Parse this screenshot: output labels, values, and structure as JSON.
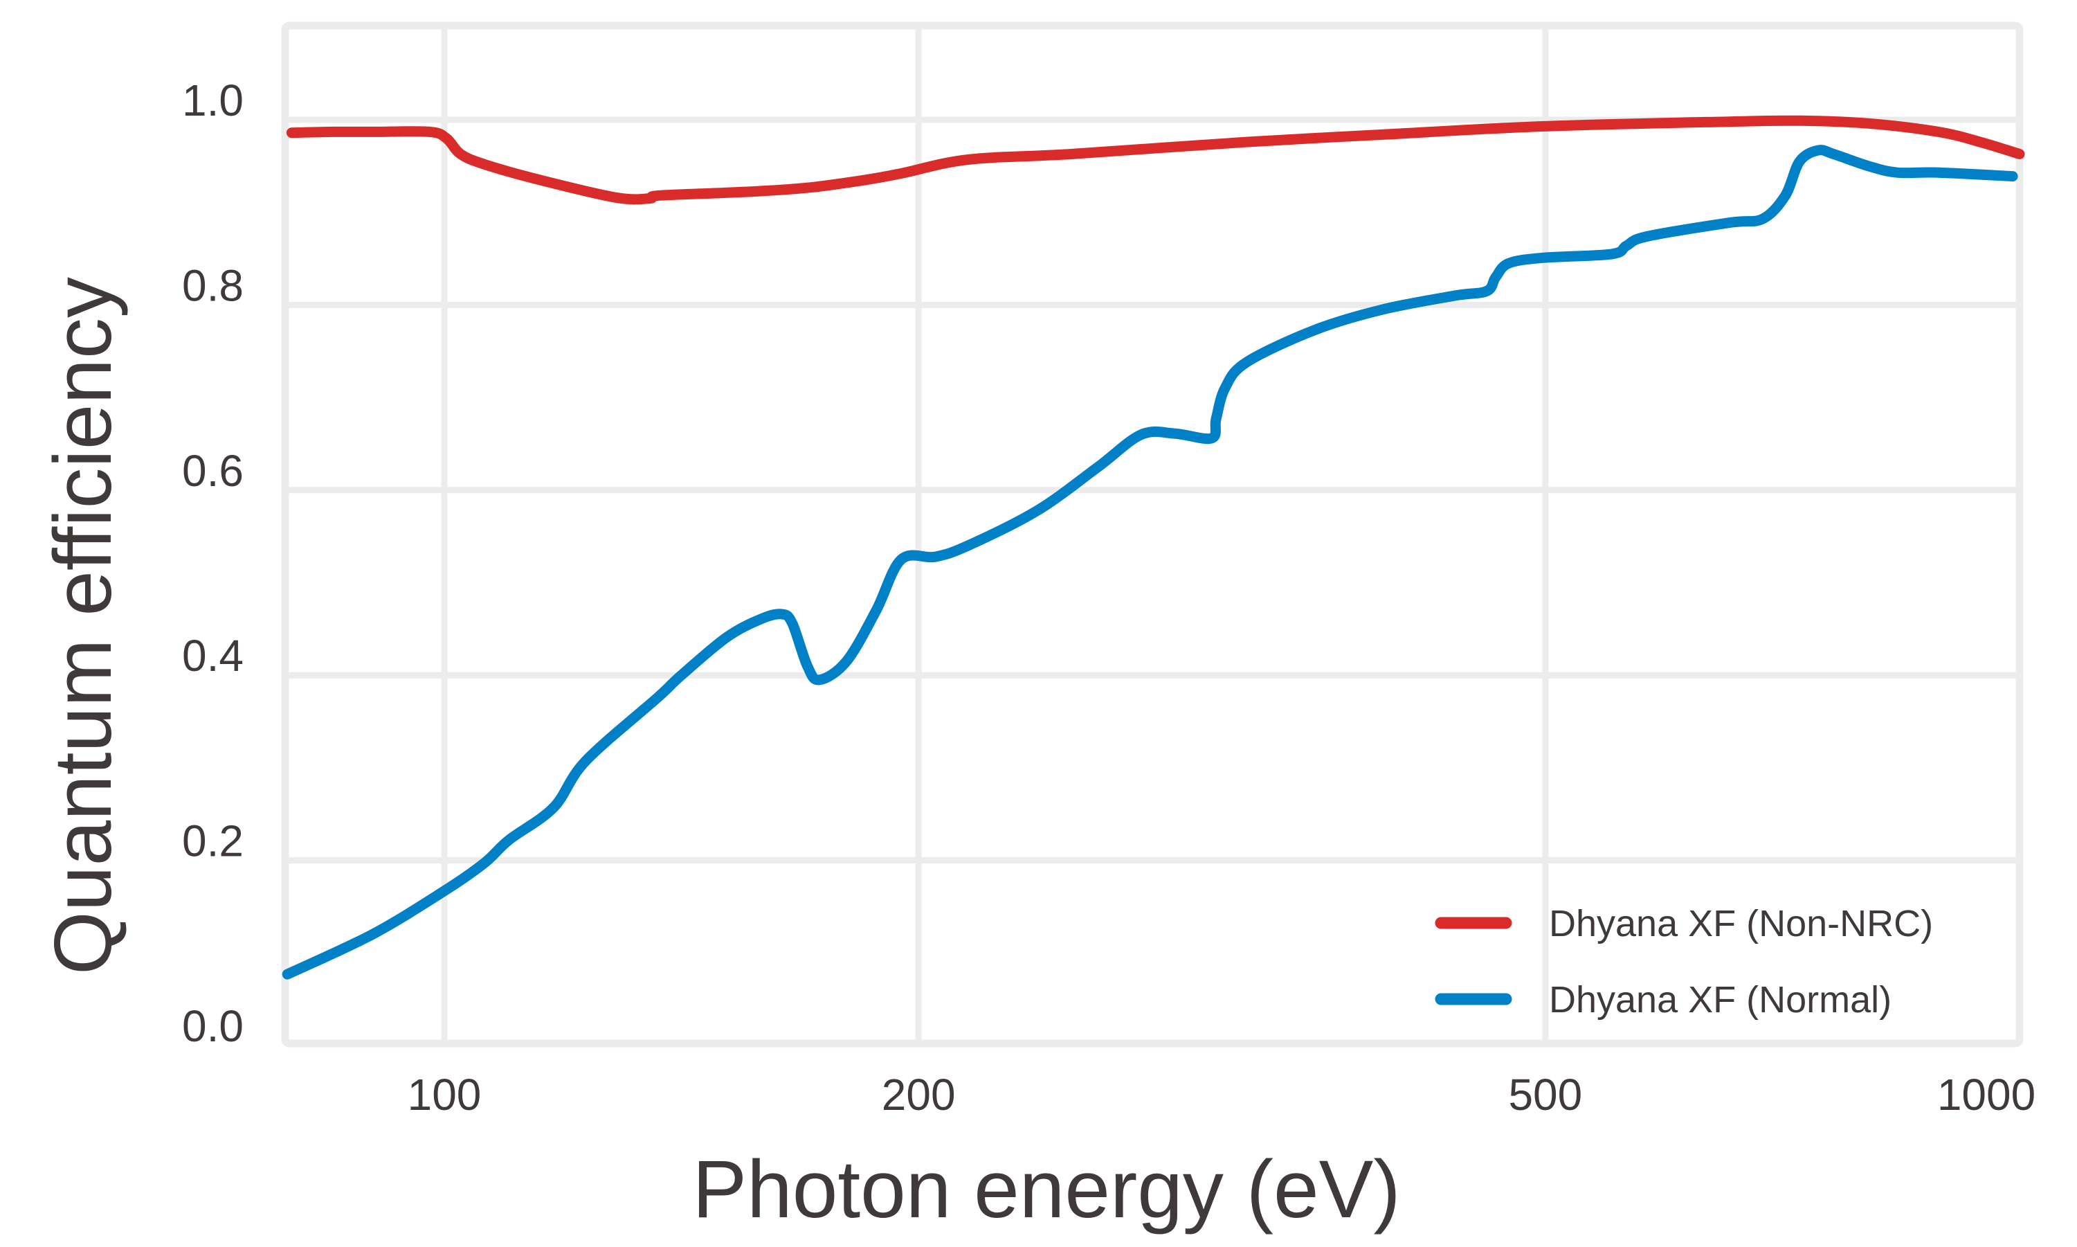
{
  "chart_data": {
    "type": "line",
    "title": "",
    "xlabel": "Photon energy (eV)",
    "ylabel": "Quantum efficiency",
    "xscale": "log",
    "xlim": [
      79,
      1000
    ],
    "ylim": [
      0.0,
      1.0
    ],
    "xticks": [
      100,
      200,
      500,
      1000
    ],
    "xtick_labels": [
      "100",
      "200",
      "500",
      "1000"
    ],
    "yticks": [
      0.0,
      0.2,
      0.4,
      0.6,
      0.8,
      1.0
    ],
    "ytick_labels": [
      "0.0",
      "0.2",
      "0.4",
      "0.6",
      "0.8",
      "1.0"
    ],
    "grid": true,
    "legend": {
      "position": "bottom-right"
    },
    "series": [
      {
        "name": "Dhyana XF (Non-NRC)",
        "color": "#d92b2a",
        "x": [
          80,
          85,
          90,
          97.8,
          100.3,
          102.4,
          106,
          115,
          128.5,
          135,
          136.5,
          150,
          159,
          171,
          185,
          195,
          215,
          250,
          323,
          394,
          499,
          655,
          725,
          802,
          888,
          944,
          1000
        ],
        "y": [
          0.986,
          0.987,
          0.987,
          0.987,
          0.98,
          0.963,
          0.952,
          0.935,
          0.916,
          0.915,
          0.918,
          0.921,
          0.923,
          0.927,
          0.935,
          0.942,
          0.957,
          0.963,
          0.976,
          0.984,
          0.993,
          0.998,
          0.999,
          0.996,
          0.987,
          0.976,
          0.963
        ]
      },
      {
        "name": "Dhyana XF (Normal)",
        "color": "#0080c6",
        "x": [
          79.5,
          90,
          100,
          106,
          109.9,
          117.3,
          122.9,
          136.6,
          141.2,
          151.1,
          159,
          163.8,
          166.3,
          170,
          173,
          180,
          188,
          195,
          205,
          215,
          238,
          260,
          277,
          291,
          307,
          309,
          313,
          323,
          357,
          394,
          438,
          459,
          465,
          474,
          499,
          551,
          563,
          580,
          655,
          687,
          710,
          725,
          745,
          762,
          802,
          836,
          888,
          990
        ],
        "y": [
          0.077,
          0.12,
          0.167,
          0.197,
          0.222,
          0.257,
          0.307,
          0.376,
          0.399,
          0.441,
          0.461,
          0.466,
          0.456,
          0.41,
          0.395,
          0.415,
          0.47,
          0.525,
          0.528,
          0.54,
          0.578,
          0.625,
          0.66,
          0.661,
          0.656,
          0.677,
          0.71,
          0.738,
          0.773,
          0.795,
          0.81,
          0.815,
          0.83,
          0.845,
          0.851,
          0.855,
          0.864,
          0.874,
          0.889,
          0.893,
          0.918,
          0.955,
          0.967,
          0.963,
          0.95,
          0.943,
          0.943,
          0.939
        ]
      }
    ]
  }
}
